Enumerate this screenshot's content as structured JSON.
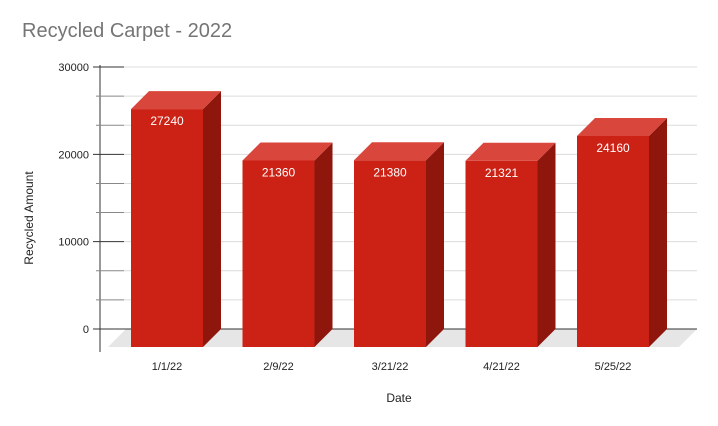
{
  "chart_data": {
    "type": "bar",
    "title": "Recycled Carpet - 2022",
    "xlabel": "Date",
    "ylabel": "Recycled Amount",
    "categories": [
      "1/1/22",
      "2/9/22",
      "3/21/22",
      "4/21/22",
      "5/25/22"
    ],
    "values": [
      27240,
      21360,
      21380,
      21321,
      24160
    ],
    "data_labels": [
      "27240",
      "21360",
      "21380",
      "21321",
      "24160"
    ],
    "y_ticks": [
      "0",
      "10000",
      "20000",
      "30000"
    ],
    "y_tick_values": [
      0,
      10000,
      20000,
      30000
    ],
    "ylim": [
      0,
      30000
    ],
    "grid": true,
    "legend": "none",
    "three_d": true,
    "colors": {
      "bar_front": "#cc2216",
      "bar_top": "#d9473c",
      "bar_side": "#8e160d",
      "floor": "#e6e6e6",
      "grid": "#dcdcdc",
      "axis": "#333333",
      "title": "#757575",
      "label_text": "#ffffff"
    }
  }
}
